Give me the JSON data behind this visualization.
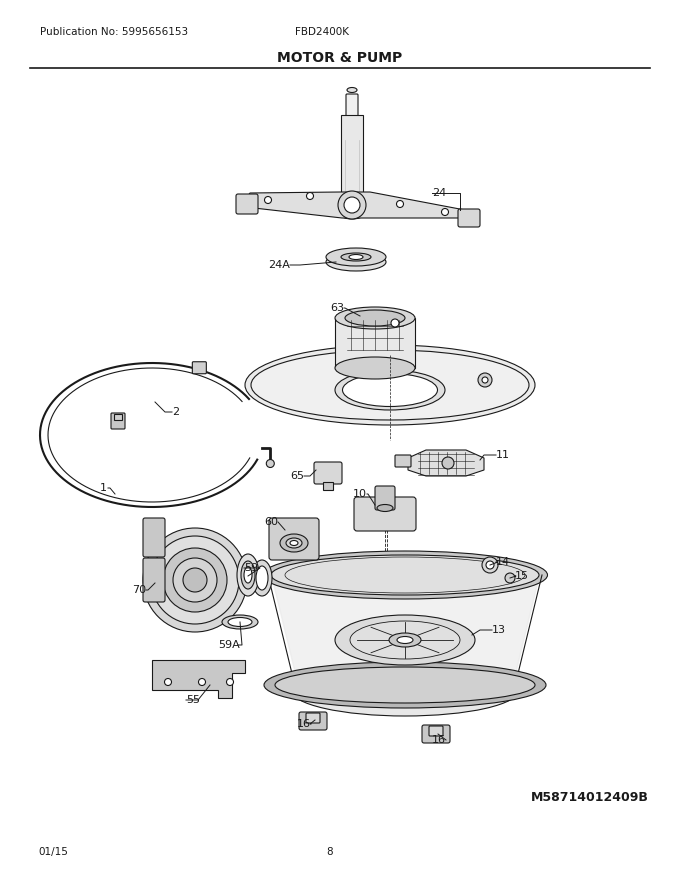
{
  "title": "MOTOR & PUMP",
  "publication": "Publication No: 5995656153",
  "model": "FBD2400K",
  "date": "01/15",
  "page": "8",
  "part_id": "M58714012409B",
  "bg_color": "#ffffff",
  "line_color": "#1a1a1a",
  "title_fontsize": 10,
  "label_fontsize": 8,
  "small_fontsize": 7.5
}
